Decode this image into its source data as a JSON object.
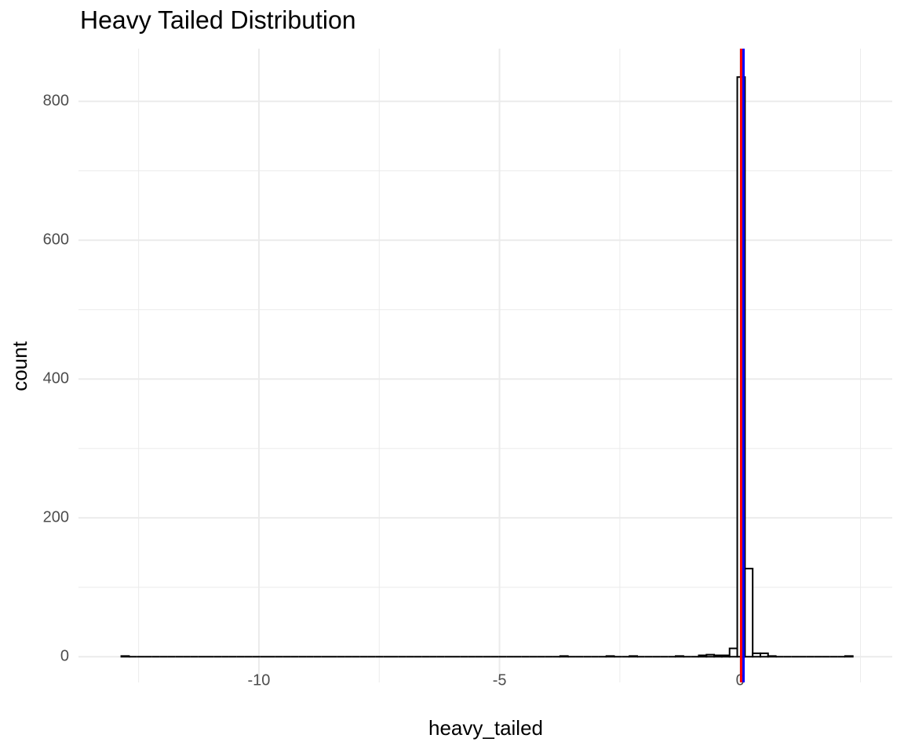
{
  "chart_data": {
    "type": "histogram",
    "title": "Heavy Tailed Distribution",
    "x_label": "heavy_tailed",
    "y_label": "count",
    "bins": [
      -12.86,
      -12.7,
      -12.54,
      -12.38,
      -12.22,
      -12.06,
      -11.9,
      -11.74,
      -11.58,
      -11.42,
      -11.26,
      -11.1,
      -10.94,
      -10.78,
      -10.62,
      -10.46,
      -10.3,
      -10.14,
      -9.98,
      -9.82,
      -9.66,
      -9.5,
      -9.34,
      -9.18,
      -9.02,
      -8.86,
      -8.7,
      -8.54,
      -8.38,
      -8.22,
      -8.06,
      -7.9,
      -7.74,
      -7.58,
      -7.42,
      -7.26,
      -7.1,
      -6.94,
      -6.78,
      -6.62,
      -6.46,
      -6.3,
      -6.14,
      -5.98,
      -5.82,
      -5.66,
      -5.5,
      -5.34,
      -5.18,
      -5.02,
      -4.86,
      -4.7,
      -4.54,
      -4.38,
      -4.22,
      -4.06,
      -3.9,
      -3.74,
      -3.58,
      -3.42,
      -3.26,
      -3.1,
      -2.94,
      -2.78,
      -2.62,
      -2.46,
      -2.3,
      -2.14,
      -1.98,
      -1.82,
      -1.66,
      -1.5,
      -1.34,
      -1.18,
      -1.02,
      -0.86,
      -0.7,
      -0.54,
      -0.38,
      -0.22,
      -0.06,
      0.1,
      0.26,
      0.42,
      0.58,
      0.74,
      0.9,
      1.06,
      1.22,
      1.38,
      1.54,
      1.7,
      1.86,
      2.02,
      2.18,
      2.34
    ],
    "counts": [
      1,
      0,
      0,
      0,
      0,
      0,
      0,
      0,
      0,
      0,
      0,
      0,
      0,
      0,
      0,
      0,
      0,
      0,
      0,
      0,
      0,
      0,
      0,
      0,
      0,
      0,
      0,
      0,
      0,
      0,
      0,
      0,
      0,
      0,
      0,
      0,
      0,
      0,
      0,
      0,
      0,
      0,
      0,
      0,
      0,
      0,
      0,
      0,
      0,
      0,
      0,
      0,
      0,
      0,
      0,
      0,
      0,
      1,
      0,
      0,
      0,
      0,
      0,
      1,
      0,
      0,
      1,
      0,
      0,
      0,
      0,
      0,
      1,
      0,
      0,
      2,
      3,
      2,
      2,
      12,
      835,
      127,
      5,
      5,
      1,
      0,
      0,
      0,
      0,
      0,
      0,
      0,
      0,
      0,
      1
    ],
    "fill": "#ffffff",
    "edge_color": "#000000",
    "vlines": [
      {
        "value": 0.02,
        "color": "#ff0000"
      },
      {
        "value": 0.07,
        "color": "#0000ff"
      }
    ],
    "xlim": [
      -13.75,
      3.16
    ],
    "ylim": [
      -37,
      876
    ],
    "xticks": [
      -10,
      -5,
      0
    ],
    "yticks": [
      0,
      200,
      400,
      600,
      800
    ],
    "x_minor_ticks": [
      -12.5,
      -7.5,
      -2.5,
      2.5
    ],
    "y_minor_ticks": [
      100,
      300,
      500,
      700
    ],
    "grid": true
  }
}
